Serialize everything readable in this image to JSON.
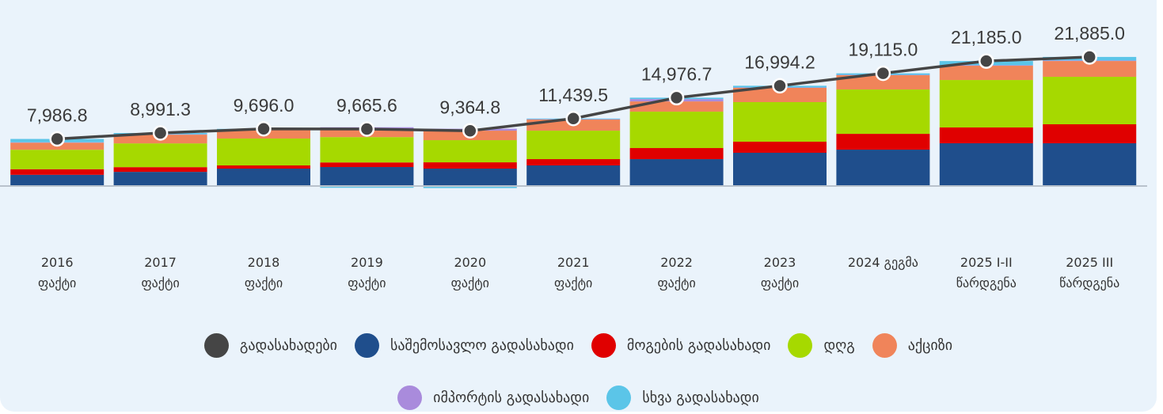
{
  "chart_data": {
    "type": "bar",
    "stacked": true,
    "categories": [
      "2016\nფაქტი",
      "2017\nფაქტი",
      "2018\nფაქტი",
      "2019\nფაქტი",
      "2020\nფაქტი",
      "2021\nფაქტი",
      "2022\nფაქტი",
      "2023\nფაქტი",
      "2024 გეგმა",
      "2025 I-II\nწარდგენა",
      "2025 III\nწარდგენა"
    ],
    "ylim": [
      -1000,
      22500
    ],
    "legend": "bottom",
    "series": [
      {
        "name": "გადასახადები",
        "type": "line",
        "color": "#454545",
        "values": [
          7986.8,
          8991.3,
          9696.0,
          9665.6,
          9364.8,
          11439.5,
          14976.7,
          16994.2,
          19115.0,
          21185.0,
          21885.0
        ],
        "value_labels": [
          "7,986.8",
          "8,991.3",
          "9,696.0",
          "9,665.6",
          "9,364.8",
          "11,439.5",
          "14,976.7",
          "16,994.2",
          "19,115.0",
          "21,185.0",
          "21,885.0"
        ]
      },
      {
        "name": "საშემოსავლო გადასახადი",
        "color": "#1f4e8c",
        "values": [
          1900,
          2400,
          2950,
          3220,
          2950,
          3490,
          4560,
          5640,
          6170,
          7250,
          7250
        ]
      },
      {
        "name": "მოგების გადასახადი",
        "color": "#e00000",
        "values": [
          950,
          800,
          540,
          780,
          1070,
          1070,
          1880,
          1880,
          2680,
          2680,
          3220
        ]
      },
      {
        "name": "დღგ",
        "color": "#a6d900",
        "values": [
          3300,
          4030,
          4560,
          4300,
          3760,
          4830,
          6170,
          6710,
          7520,
          8050,
          8050
        ]
      },
      {
        "name": "აქციზი",
        "color": "#f0845a",
        "values": [
          1200,
          1480,
          1480,
          1400,
          1610,
          1880,
          1740,
          2420,
          2420,
          2420,
          2680
        ]
      },
      {
        "name": "იმპორტის გადასახადი",
        "color": "#a98bdc",
        "values": [
          70,
          60,
          60,
          265,
          325,
          60,
          400,
          60,
          60,
          90,
          90
        ]
      },
      {
        "name": "სხვა გადასახადი",
        "color": "#5bc5e8",
        "values": [
          560,
          220,
          100,
          -300,
          -350,
          110,
          230,
          290,
          260,
          700,
          600
        ]
      }
    ]
  }
}
